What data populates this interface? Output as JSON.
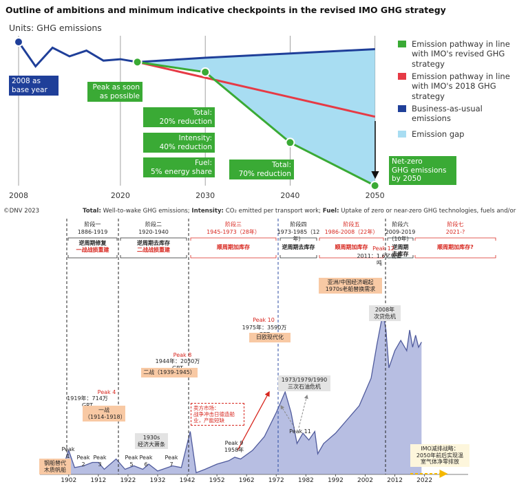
{
  "chart_data": [
    {
      "type": "line",
      "title": "Outline of ambitions and minimum indicative checkpoints in the revised IMO GHG strategy",
      "subtitle": "Units: GHG emissions",
      "xlim": [
        2008,
        2051
      ],
      "ylim": [
        0,
        100
      ],
      "xticks": [
        2008,
        2020,
        2030,
        2040,
        2050
      ],
      "grid": true,
      "series": [
        {
          "name": "Emission pathway in line with IMO's revised GHG strategy",
          "color": "#3aaa35",
          "markers": true,
          "x": [
            2022,
            2030,
            2040,
            2050
          ],
          "values": [
            86,
            79,
            30,
            0
          ]
        },
        {
          "name": "Emission pathway in line with IMO's 2018 GHG strategy",
          "color": "#e63a45",
          "x": [
            2022,
            2050
          ],
          "values": [
            86,
            48
          ]
        },
        {
          "name": "Business-as-usual emissions",
          "color": "#1f3f99",
          "start_marker": true,
          "x": [
            2008,
            2010,
            2012,
            2014,
            2016,
            2018,
            2020,
            2022,
            2030,
            2040,
            2050
          ],
          "values": [
            100,
            83,
            96,
            90,
            94,
            87,
            88,
            86,
            89,
            92,
            95
          ]
        },
        {
          "name": "Emission gap",
          "color": "#a8ddf2",
          "fill_between": [
            2,
            0
          ]
        }
      ],
      "annotations": [
        {
          "text": "2008 as\nbase year",
          "color": "#1f3f99"
        },
        {
          "text": "Peak as soon\nas possible",
          "color": "#3aaa35"
        },
        {
          "text": "Total:\n20% reduction",
          "color": "#3aaa35"
        },
        {
          "text": "Intensity:\n40% reduction",
          "color": "#3aaa35"
        },
        {
          "text": "Fuel:\n5% energy share",
          "color": "#3aaa35"
        },
        {
          "text": "Total:\n70% reduction",
          "color": "#3aaa35"
        },
        {
          "text": "Net-zero\nGHG emissions\nby 2050",
          "color": "#3aaa35"
        }
      ],
      "source": "©DNV 2023",
      "footnote": [
        [
          "Total:",
          " Well-to-wake GHG emissions; "
        ],
        [
          "Intensity:",
          " CO₂ emitted per transport work; "
        ],
        [
          "Fuel:",
          " Uptake of zero or near-zero GHG technologies, fuels and/or energy sources"
        ]
      ]
    },
    {
      "type": "area",
      "color": "#b7bee2",
      "line_color": "#4f5a9c",
      "xlim": [
        1893,
        2033
      ],
      "ylim": [
        0,
        100
      ],
      "xticks": [
        1902,
        1912,
        1922,
        1932,
        1942,
        1952,
        1962,
        1972,
        1982,
        1992,
        2002,
        2012,
        2022
      ],
      "x": [
        1900,
        1902,
        1904,
        1907,
        1910,
        1912,
        1914,
        1918,
        1921,
        1924,
        1927,
        1929,
        1932,
        1937,
        1940,
        1943,
        1945,
        1948,
        1952,
        1956,
        1958,
        1960,
        1964,
        1968,
        1972,
        1975,
        1977,
        1979,
        1981,
        1983,
        1985,
        1986,
        1988,
        1992,
        1996,
        2000,
        2004,
        2006,
        2008,
        2009,
        2010,
        2012,
        2014,
        2016,
        2017,
        2018,
        2019,
        2020,
        2021
      ],
      "values": [
        4,
        14,
        4,
        5,
        7,
        7,
        3,
        9,
        3,
        5,
        3,
        6,
        2,
        5,
        4,
        25,
        1,
        3,
        6,
        8,
        10,
        9,
        14,
        22,
        36,
        48,
        36,
        18,
        24,
        20,
        25,
        12,
        18,
        24,
        32,
        40,
        56,
        76,
        94,
        84,
        62,
        72,
        78,
        72,
        84,
        74,
        81,
        74,
        77
      ],
      "phases": [
        {
          "name": "阶段一",
          "period": "1886-1919",
          "color": "#222222",
          "trend": [
            {
              "text": "逆周期修复",
              "color": "#222222"
            },
            {
              "text": "一战战损重建",
              "color": "#d7261e"
            }
          ]
        },
        {
          "name": "阶段二",
          "period": "1920-1940",
          "color": "#222222",
          "trend": [
            {
              "text": "逆周期去库存",
              "color": "#222222"
            },
            {
              "text": "二战战损重建",
              "color": "#d7261e"
            }
          ]
        },
        {
          "name": "阶段三",
          "period": "1945-1973（28年）",
          "color": "#d7261e",
          "trend": [
            {
              "text": "顺周期加库存",
              "color": "#d7261e"
            }
          ]
        },
        {
          "name": "阶段四",
          "period": "1973-1985（12年）",
          "color": "#222222",
          "trend": [
            {
              "text": "逆周期去库存",
              "color": "#222222"
            }
          ]
        },
        {
          "name": "阶段五",
          "period": "1986-2008（22年）",
          "color": "#d7261e",
          "trend": [
            {
              "text": "顺周期加库存",
              "color": "#d7261e"
            }
          ]
        },
        {
          "name": "阶段六",
          "period": "2009-2019（10年）",
          "color": "#222222",
          "trend": [
            {
              "text": "逆周期\n去库存",
              "color": "#222222"
            }
          ]
        },
        {
          "name": "阶段七",
          "period": "2021-?",
          "color": "#d7261e",
          "trend": [
            {
              "text": "顺周期加库存?",
              "color": "#d7261e"
            }
          ]
        }
      ],
      "annotations": [
        {
          "text": "钢船替代\n木质帆船",
          "style": "orange"
        },
        {
          "text": "Peak\n1",
          "style": "plain"
        },
        {
          "text": "Peak\n2",
          "style": "plain"
        },
        {
          "text": "Peak\n3",
          "style": "plain"
        },
        {
          "text": "Peak 4",
          "style": "red"
        },
        {
          "text": "1919年：714万GRT",
          "style": "plain"
        },
        {
          "text": "一战\n（1914-1918）",
          "style": "orange"
        },
        {
          "text": "Peak\n5",
          "style": "plain"
        },
        {
          "text": "Peak\n6",
          "style": "plain"
        },
        {
          "text": "Peak\n7",
          "style": "plain"
        },
        {
          "text": "1930s\n经济大萧条",
          "style": "gray"
        },
        {
          "text": "Peak 8",
          "style": "red"
        },
        {
          "text": "1944年：2030万GRT",
          "style": "plain"
        },
        {
          "text": "二战（1939-1945）",
          "style": "orange"
        },
        {
          "text": "卖方市场：\n战争冲击日德造船\n业，产能短缺",
          "style": "redbox"
        },
        {
          "text": "Peak 9\n1958年",
          "style": "plain"
        },
        {
          "text": "Peak 10",
          "style": "red"
        },
        {
          "text": "1975年：3590万GRT",
          "style": "plain"
        },
        {
          "text": "日欧现代化",
          "style": "orange"
        },
        {
          "text": "1973/1979/1990\n三次石油危机",
          "style": "gray"
        },
        {
          "text": "Peak 11",
          "style": "plain"
        },
        {
          "text": "Peak 12",
          "style": "red"
        },
        {
          "text": "2011：1.6亿载重吨",
          "style": "plain"
        },
        {
          "text": "亚洲/中国经济崛起\n1970s老船替换需求",
          "style": "orange"
        },
        {
          "text": "2008年\n次贷危机",
          "style": "gray"
        },
        {
          "text": "IMO减排战略：\n2050年前后实现温\n室气体净零排放",
          "style": "imo"
        }
      ]
    }
  ]
}
